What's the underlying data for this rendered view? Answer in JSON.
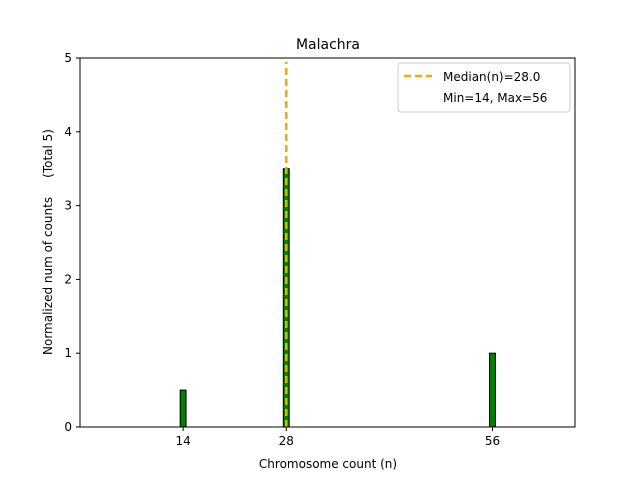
{
  "chart_data": {
    "type": "bar",
    "title": "Malachra",
    "xlabel": "Chromosome count (n)",
    "ylabel": "Normalized num of counts     (Total 5)",
    "xlim": [
      0,
      67.2
    ],
    "ylim": [
      0,
      5
    ],
    "x_ticks": [
      14,
      28,
      56
    ],
    "x_tick_labels": [
      "14",
      "28",
      "56"
    ],
    "y_ticks": [
      0,
      1,
      2,
      3,
      4,
      5
    ],
    "y_tick_labels": [
      "0",
      "1",
      "2",
      "3",
      "4",
      "5"
    ],
    "bar_width": 0.8,
    "bars": [
      {
        "x": 14,
        "value": 0.5
      },
      {
        "x": 28,
        "value": 3.5
      },
      {
        "x": 56,
        "value": 1
      }
    ],
    "median_line": {
      "x": 28,
      "ymax": 4.95
    },
    "grid": false,
    "legend": {
      "placement": "top-right",
      "entries": [
        "Median(n)=28.0",
        "Min=14, Max=56"
      ]
    },
    "colors": {
      "bar": "#008000",
      "bar_edge": "#000000",
      "median": "#FFA500"
    }
  }
}
